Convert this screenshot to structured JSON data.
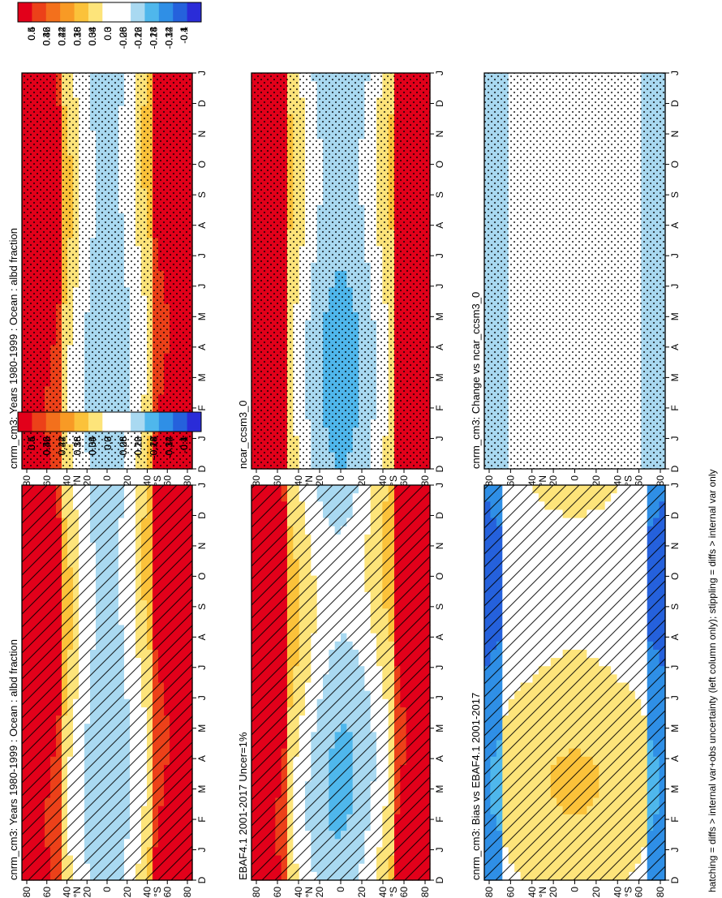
{
  "footnote": "hatching = diffs > internal var+obs uncertainty (left column only); stippling = diffs > internal var only",
  "chart_data": [
    {
      "type": "heatmap",
      "title": "cnrm_cm3: Years 1980-1999 : Ocean : albd fraction",
      "x": [
        "D",
        "J",
        "F",
        "M",
        "A",
        "M",
        "J",
        "J",
        "A",
        "S",
        "O",
        "N",
        "D",
        "J"
      ],
      "y_ticks": [
        "80",
        "60",
        "40",
        "20",
        "0",
        "20",
        "40",
        "60",
        "80"
      ],
      "y_label": [
        "°N",
        "°S"
      ],
      "colorbar": [
        "0.5",
        "0.46",
        "0.42",
        "0.38",
        "0.34",
        "0.3",
        "0.26",
        "0.22",
        "0.18",
        "0.14",
        "0.1"
      ],
      "field": "albedo",
      "overlay": "hatching"
    },
    {
      "type": "heatmap",
      "title": "cnrm_cm3: Years 1980-1999 : Ocean : albd fraction",
      "x": [
        "D",
        "J",
        "F",
        "M",
        "A",
        "M",
        "J",
        "J",
        "A",
        "S",
        "O",
        "N",
        "D",
        "J"
      ],
      "y_ticks": [
        "80",
        "60",
        "40",
        "20",
        "0",
        "20",
        "40",
        "60",
        "80"
      ],
      "y_label": [
        "°N",
        "°S"
      ],
      "colorbar": [
        "0.5",
        "0.46",
        "0.42",
        "0.38",
        "0.34",
        "0.3",
        "0.26",
        "0.22",
        "0.18",
        "0.14",
        "0.1"
      ],
      "field": "albedo",
      "overlay": "stippling"
    },
    {
      "type": "heatmap",
      "title": "EBAF4.1 2001-2017 Uncer=1%",
      "x": [
        "D",
        "J",
        "F",
        "M",
        "A",
        "M",
        "J",
        "J",
        "A",
        "S",
        "O",
        "N",
        "D",
        "J"
      ],
      "y_ticks": [
        "80",
        "60",
        "40",
        "20",
        "0",
        "20",
        "40",
        "60",
        "80"
      ],
      "y_label": [
        "°N",
        "°S"
      ],
      "colorbar": [
        "0.5",
        "0.46",
        "0.42",
        "0.38",
        "0.34",
        "0.3",
        "0.26",
        "0.22",
        "0.18",
        "0.14",
        "0.1"
      ],
      "field": "albedo_obs",
      "overlay": "hatching"
    },
    {
      "type": "heatmap",
      "title": "ncar_ccsm3_0",
      "x": [
        "D",
        "J",
        "F",
        "M",
        "A",
        "M",
        "J",
        "J",
        "A",
        "S",
        "O",
        "N",
        "D",
        "J"
      ],
      "y_ticks": [
        "80",
        "60",
        "40",
        "20",
        "0",
        "20",
        "40",
        "60",
        "80"
      ],
      "y_label": [
        "°N",
        "°S"
      ],
      "colorbar": [
        "0.5",
        "0.46",
        "0.42",
        "0.38",
        "0.34",
        "0.3",
        "0.26",
        "0.22",
        "0.18",
        "0.14",
        "0.1"
      ],
      "field": "albedo_ref",
      "overlay": "stippling"
    },
    {
      "type": "heatmap",
      "title": "cnrm_cm3: Bias vs EBAF4.1 2001-2017",
      "x": [
        "D",
        "J",
        "F",
        "M",
        "A",
        "M",
        "J",
        "J",
        "A",
        "S",
        "O",
        "N",
        "D",
        "J"
      ],
      "y_ticks": [
        "80",
        "60",
        "40",
        "20",
        "0",
        "20",
        "40",
        "60",
        "80"
      ],
      "y_label": [
        "°N",
        "°S"
      ],
      "colorbar": [
        "0.4",
        "0.32",
        "0.24",
        "0.16",
        "0.08",
        "0",
        "-0.08",
        "-0.16",
        "-0.24",
        "-0.32",
        "-0.4"
      ],
      "field": "bias",
      "overlay": "hatching"
    },
    {
      "type": "heatmap",
      "title": "cnrm_cm3: Change vs ncar_ccsm3_0",
      "x": [
        "D",
        "J",
        "F",
        "M",
        "A",
        "M",
        "J",
        "J",
        "A",
        "S",
        "O",
        "N",
        "D",
        "J"
      ],
      "y_ticks": [
        "80",
        "60",
        "40",
        "20",
        "0",
        "20",
        "40",
        "60",
        "80"
      ],
      "y_label": [
        "°N",
        "°S"
      ],
      "colorbar": [
        "0.4",
        "0.32",
        "0.24",
        "0.16",
        "0.08",
        "0",
        "-0.08",
        "-0.16",
        "-0.24",
        "-0.32",
        "-0.4"
      ],
      "field": "change",
      "overlay": "stippling"
    }
  ]
}
